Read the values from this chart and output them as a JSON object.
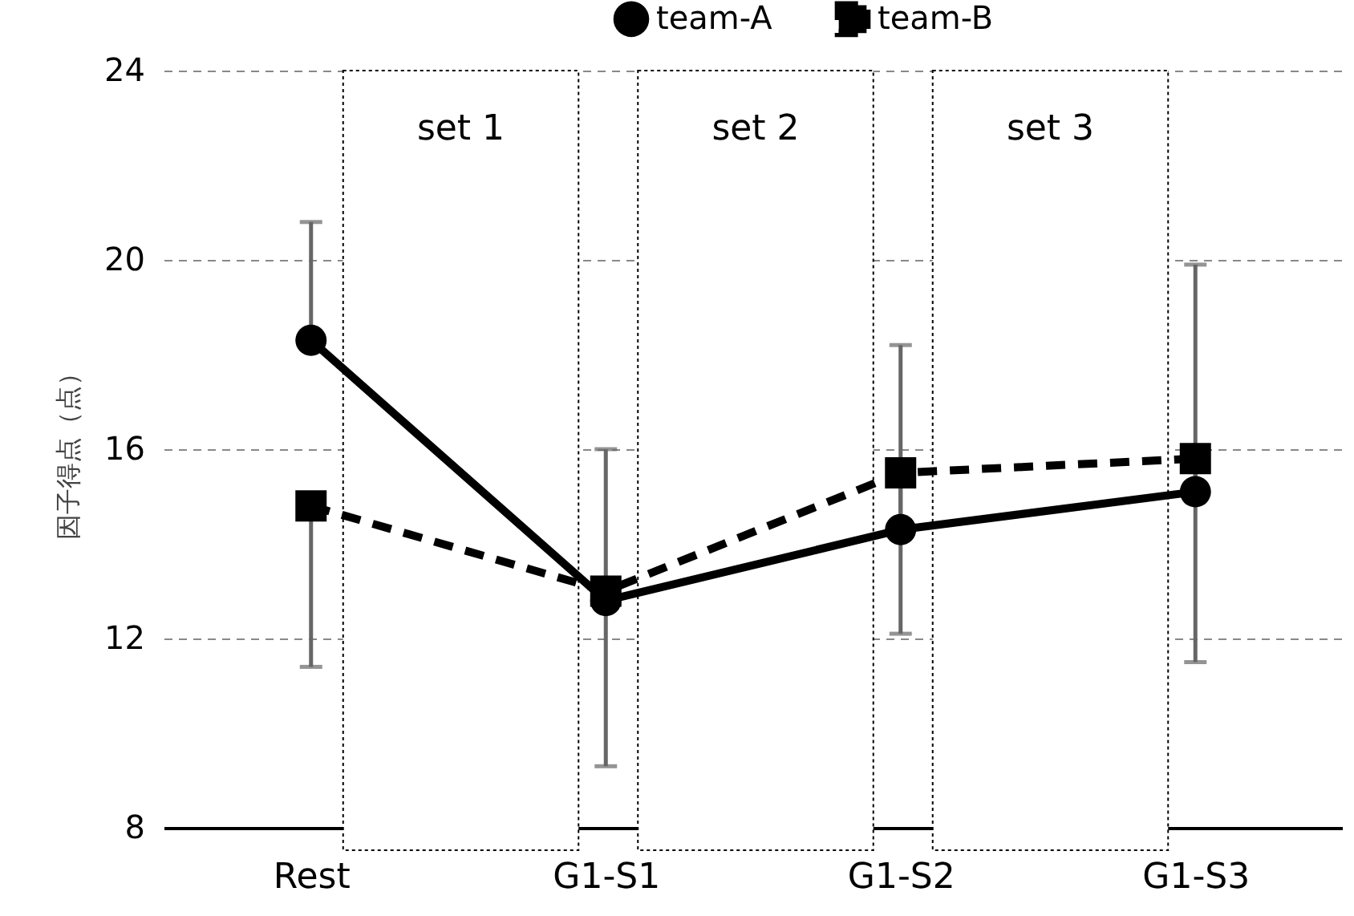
{
  "chart_data": {
    "type": "line",
    "ylabel": "因子得点（点）",
    "categories": [
      "Rest",
      "G1-S1",
      "G1-S2",
      "G1-S3"
    ],
    "series": [
      {
        "name": "team-A",
        "color": "#000000",
        "marker": "circle",
        "line_style": "solid",
        "values": [
          18.3,
          12.8,
          14.3,
          15.1
        ],
        "errors": [
          [
            18.3,
            20.8
          ],
          [
            12.8,
            16.0
          ],
          [
            14.3,
            18.2
          ],
          [
            15.1,
            19.9
          ]
        ]
      },
      {
        "name": "team-B",
        "color": "#000000",
        "marker": "square",
        "line_style": "dashed",
        "values": [
          14.8,
          13.0,
          15.5,
          15.8
        ],
        "errors": [
          [
            11.4,
            14.8
          ],
          [
            9.3,
            13.0
          ],
          [
            12.1,
            15.5
          ],
          [
            11.5,
            15.8
          ]
        ]
      }
    ],
    "bands": [
      {
        "axis": "x",
        "from": "Rest",
        "to": "G1-S1",
        "label": "set 1"
      },
      {
        "axis": "x",
        "from": "G1-S1",
        "to": "G1-S2",
        "label": "set 2"
      },
      {
        "axis": "x",
        "from": "G1-S2",
        "to": "G1-S3",
        "label": "set 3"
      }
    ],
    "ylim": [
      8,
      24
    ],
    "yticks": [
      8,
      12,
      16,
      20,
      24
    ],
    "grid": "y",
    "legend": "top right"
  }
}
